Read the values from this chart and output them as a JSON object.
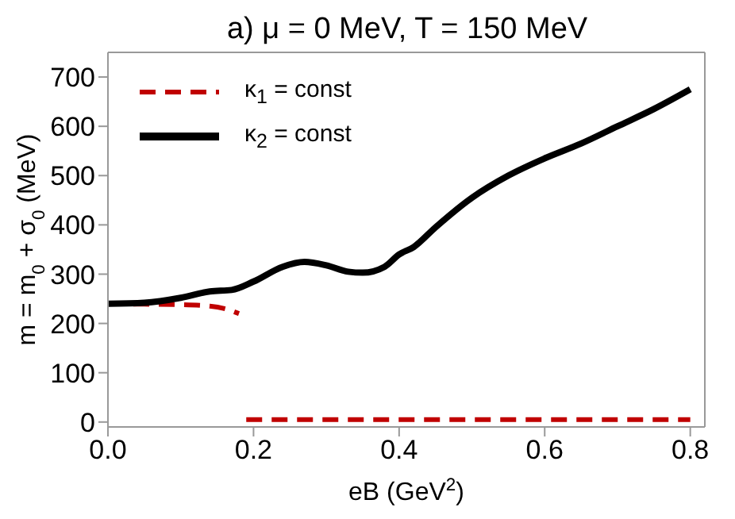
{
  "chart_data": {
    "type": "line",
    "title": "a) μ = 0 MeV, T = 150 MeV",
    "xlabel": "eB (GeV$^{2}$)",
    "ylabel": "m = m$_{0}$ + σ$_{0}$ (MeV)",
    "series": [
      {
        "name": "κ$_{1}$ = const",
        "color": "#c00000",
        "line_style": "dashed",
        "x": [
          0,
          0.05,
          0.1,
          0.14,
          0.16,
          0.18,
          0.185,
          0.19,
          0.3,
          0.4,
          0.5,
          0.6,
          0.7,
          0.8
        ],
        "values": [
          240,
          239,
          238,
          235,
          230,
          220,
          null,
          5,
          5,
          5,
          5,
          5,
          5,
          5
        ]
      },
      {
        "name": "κ$_{2}$ = const",
        "color": "#000000",
        "line_style": "solid",
        "x": [
          0,
          0.05,
          0.1,
          0.14,
          0.17,
          0.2,
          0.24,
          0.27,
          0.3,
          0.33,
          0.35,
          0.38,
          0.4,
          0.42,
          0.45,
          0.5,
          0.55,
          0.6,
          0.65,
          0.7,
          0.75,
          0.8
        ],
        "values": [
          240,
          242,
          252,
          265,
          268,
          285,
          315,
          325,
          318,
          305,
          303,
          315,
          340,
          355,
          395,
          455,
          500,
          535,
          565,
          600,
          635,
          675
        ]
      }
    ],
    "xlim": [
      0,
      0.82
    ],
    "xticks": [
      {
        "value": 0,
        "label": "0.0"
      },
      {
        "value": 0.2,
        "label": "0.2"
      },
      {
        "value": 0.4,
        "label": "0.4"
      },
      {
        "value": 0.6,
        "label": "0.6"
      },
      {
        "value": 0.8,
        "label": "0.8"
      }
    ],
    "ylim": [
      -10,
      750
    ],
    "yticks": [
      0,
      100,
      200,
      300,
      400,
      500,
      600,
      700
    ],
    "legend": "top left"
  }
}
